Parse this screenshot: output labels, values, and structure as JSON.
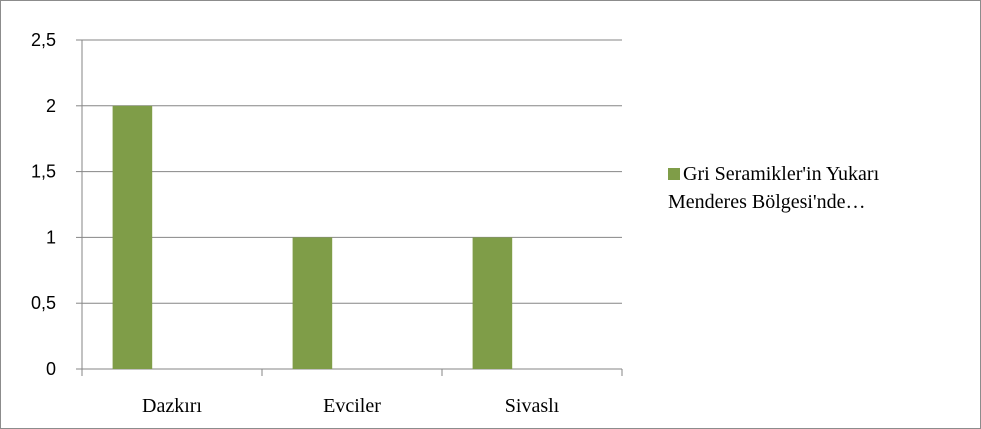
{
  "chart_data": {
    "type": "bar",
    "categories": [
      "Dazkırı",
      "Evciler",
      "Sivaslı"
    ],
    "series": [
      {
        "name": "Gri Seramikler'in Yukarı Menderes Bölgesi'nde…",
        "values": [
          2,
          1,
          1
        ],
        "color": "#7f9d48"
      }
    ],
    "yticks": [
      "0",
      "0,5",
      "1",
      "1,5",
      "2",
      "2,5"
    ],
    "ylim": [
      0,
      2.5
    ],
    "grid": true,
    "legend_position": "right"
  },
  "legend": {
    "line1": "Gri Seramikler'in Yukarı",
    "line2": "Menderes Bölgesi'nde…"
  }
}
